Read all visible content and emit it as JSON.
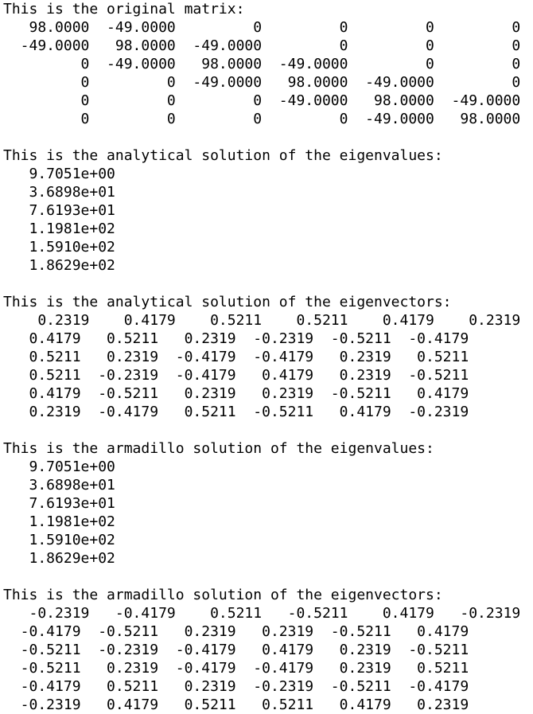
{
  "console": {
    "lines": [
      "This is the original matrix:",
      "   98.0000  -49.0000         0         0         0         0",
      "  -49.0000   98.0000  -49.0000         0         0         0",
      "         0  -49.0000   98.0000  -49.0000         0         0",
      "         0         0  -49.0000   98.0000  -49.0000         0",
      "         0         0         0  -49.0000   98.0000  -49.0000",
      "         0         0         0         0  -49.0000   98.0000",
      "",
      "This is the analytical solution of the eigenvalues:",
      "   9.7051e+00",
      "   3.6898e+01",
      "   7.6193e+01",
      "   1.1981e+02",
      "   1.5910e+02",
      "   1.8629e+02",
      "",
      "This is the analytical solution of the eigenvectors:",
      "    0.2319    0.4179    0.5211    0.5211    0.4179    0.2319",
      "   0.4179   0.5211   0.2319  -0.2319  -0.5211  -0.4179",
      "   0.5211   0.2319  -0.4179  -0.4179   0.2319   0.5211",
      "   0.5211  -0.2319  -0.4179   0.4179   0.2319  -0.5211",
      "   0.4179  -0.5211   0.2319   0.2319  -0.5211   0.4179",
      "   0.2319  -0.4179   0.5211  -0.5211   0.4179  -0.2319",
      "",
      "This is the armadillo solution of the eigenvalues:",
      "   9.7051e+00",
      "   3.6898e+01",
      "   7.6193e+01",
      "   1.1981e+02",
      "   1.5910e+02",
      "   1.8629e+02",
      "",
      "This is the armadillo solution of the eigenvectors:",
      "   -0.2319   -0.4179    0.5211   -0.5211    0.4179   -0.2319",
      "  -0.4179  -0.5211   0.2319   0.2319  -0.5211   0.4179",
      "  -0.5211  -0.2319  -0.4179   0.4179   0.2319  -0.5211",
      "  -0.5211   0.2319  -0.4179  -0.4179   0.2319   0.5211",
      "  -0.4179   0.5211   0.2319  -0.2319  -0.5211  -0.4179",
      "  -0.2319   0.4179   0.5211   0.5211   0.4179   0.2319"
    ]
  }
}
